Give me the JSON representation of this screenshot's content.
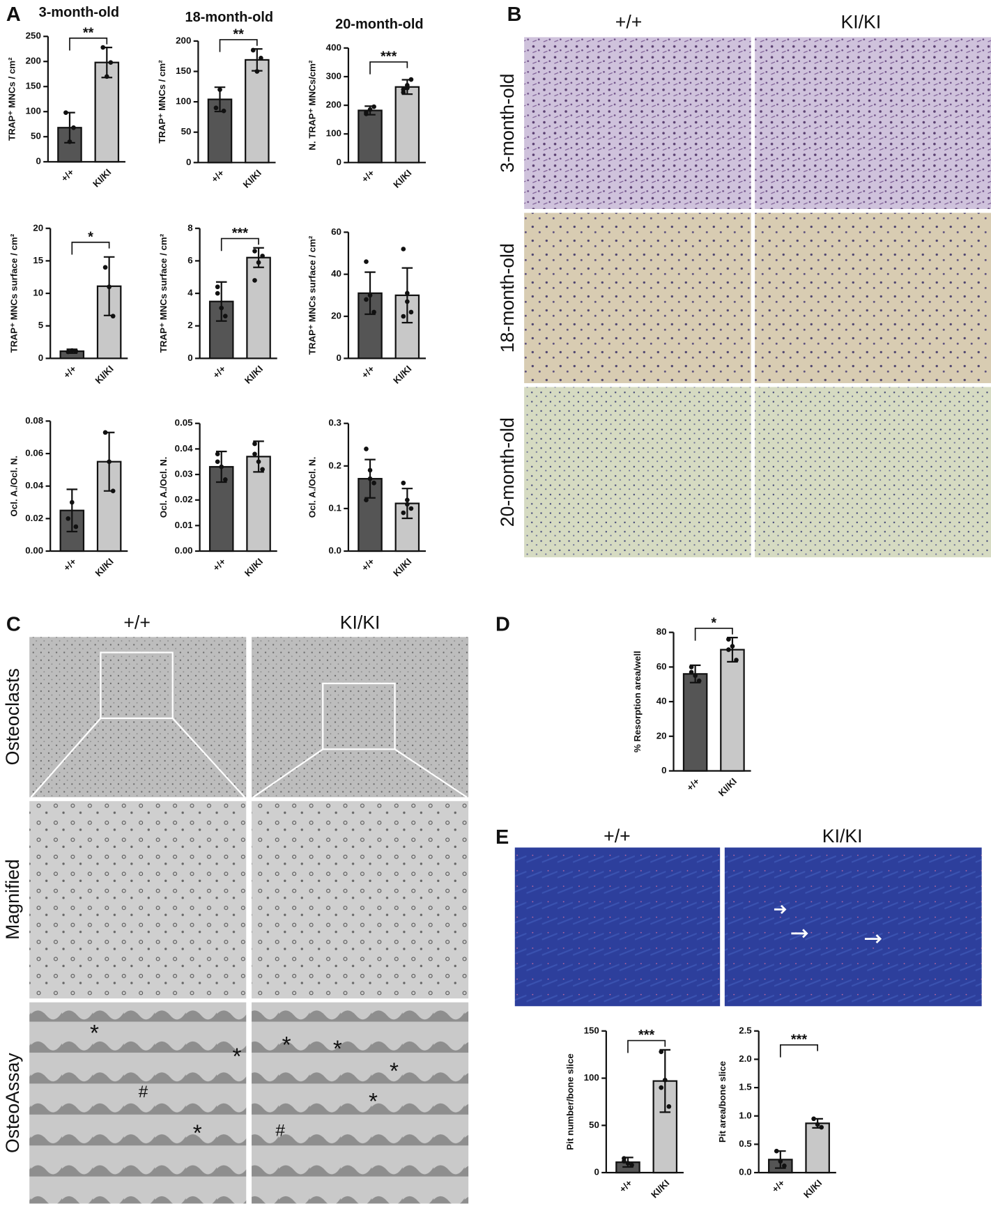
{
  "figure": {
    "panels": [
      "A",
      "B",
      "C",
      "D",
      "E"
    ],
    "B": {
      "columns": [
        "+/+",
        "KI/KI"
      ],
      "rows": [
        "3-month-old",
        "18-month-old",
        "20-month-old"
      ]
    },
    "C": {
      "columns": [
        "+/+",
        "KI/KI"
      ],
      "rows": [
        "Osteoclasts",
        "Magnified",
        "OsteoAssay"
      ],
      "marks": [
        "*",
        "#",
        "*",
        "*",
        "*",
        "*",
        "*",
        "*",
        "#"
      ]
    },
    "E": {
      "columns": [
        "+/+",
        "KI/KI"
      ]
    }
  },
  "chart_data": [
    {
      "type": "bar",
      "title": "3-month-old",
      "ylabel": "TRAP⁺ MNCs / cm²",
      "categories": [
        "+/+",
        "KI/KI"
      ],
      "colors": [
        "#555555",
        "#c8c8c8"
      ],
      "values": [
        68,
        198
      ],
      "errors": [
        30,
        30
      ],
      "points": [
        [
          98,
          40,
          68
        ],
        [
          228,
          170,
          198
        ]
      ],
      "significance": "**",
      "ylim": [
        0,
        250
      ],
      "yticks": [
        0,
        50,
        100,
        150,
        200,
        250
      ]
    },
    {
      "type": "bar",
      "title": "18-month-old",
      "ylabel": "TRAP⁺ MNCs / cm²",
      "categories": [
        "+/+",
        "KI/KI"
      ],
      "colors": [
        "#555555",
        "#c8c8c8"
      ],
      "values": [
        104,
        169
      ],
      "errors": [
        20,
        18
      ],
      "points": [
        [
          90,
          120,
          85
        ],
        [
          185,
          150,
          172
        ]
      ],
      "significance": "**",
      "ylim": [
        0,
        200
      ],
      "yticks": [
        0,
        50,
        100,
        150,
        200
      ]
    },
    {
      "type": "bar",
      "title": "20-month-old",
      "ylabel": "N. TRAP⁺ MNCs/cm²",
      "categories": [
        "+/+",
        "KI/KI"
      ],
      "colors": [
        "#555555",
        "#c8c8c8"
      ],
      "values": [
        182,
        264
      ],
      "errors": [
        15,
        25
      ],
      "points": [
        [
          170,
          185,
          195,
          175
        ],
        [
          245,
          270,
          290,
          255,
          260
        ]
      ],
      "significance": "***",
      "ylim": [
        0,
        400
      ],
      "yticks": [
        0,
        100,
        200,
        300,
        400
      ]
    },
    {
      "type": "bar",
      "ylabel": "TRAP⁺ MNCs surface / cm²",
      "categories": [
        "+/+",
        "KI/KI"
      ],
      "colors": [
        "#555555",
        "#c8c8c8"
      ],
      "values": [
        1.1,
        11.1
      ],
      "errors": [
        0.3,
        4.5
      ],
      "points": [
        [
          1,
          1.2,
          1.1
        ],
        [
          14,
          11,
          6.5
        ]
      ],
      "significance": "*",
      "ylim": [
        0,
        20
      ],
      "yticks": [
        0,
        5,
        10,
        15,
        20
      ]
    },
    {
      "type": "bar",
      "ylabel": "TRAP⁺ MNCs surface / cm²",
      "categories": [
        "+/+",
        "KI/KI"
      ],
      "colors": [
        "#555555",
        "#c8c8c8"
      ],
      "values": [
        3.5,
        6.2
      ],
      "errors": [
        1.2,
        0.6
      ],
      "points": [
        [
          4.4,
          3.1,
          2.6,
          4.0
        ],
        [
          6.6,
          5.9,
          6.3,
          4.8
        ]
      ],
      "significance": "***",
      "ylim": [
        0,
        8
      ],
      "yticks": [
        0,
        2,
        4,
        6,
        8
      ]
    },
    {
      "type": "bar",
      "ylabel": "TRAP⁺ MNCs surface / cm²",
      "categories": [
        "+/+",
        "KI/KI"
      ],
      "colors": [
        "#555555",
        "#c8c8c8"
      ],
      "values": [
        31,
        30
      ],
      "errors": [
        10,
        13
      ],
      "points": [
        [
          46,
          30,
          22,
          28
        ],
        [
          52,
          27,
          22,
          20,
          31
        ]
      ],
      "ylim": [
        0,
        60
      ],
      "yticks": [
        0,
        20,
        40,
        60
      ]
    },
    {
      "type": "bar",
      "ylabel": "Ocl. A./Ocl. N.",
      "categories": [
        "+/+",
        "KI/KI"
      ],
      "colors": [
        "#555555",
        "#c8c8c8"
      ],
      "values": [
        0.025,
        0.055
      ],
      "errors": [
        0.013,
        0.018
      ],
      "points": [
        [
          0.02,
          0.03,
          0.015
        ],
        [
          0.073,
          0.055,
          0.037
        ]
      ],
      "ylim": [
        0,
        0.08
      ],
      "yticks": [
        {
          "value": 0,
          "label": "0.00"
        },
        {
          "value": 0.02,
          "label": "0.02"
        },
        {
          "value": 0.04,
          "label": "0.04"
        },
        {
          "value": 0.06,
          "label": "0.06"
        },
        {
          "value": 0.08,
          "label": "0.08"
        }
      ]
    },
    {
      "type": "bar",
      "ylabel": "Ocl. A./Ocl. N.",
      "categories": [
        "+/+",
        "KI/KI"
      ],
      "colors": [
        "#555555",
        "#c8c8c8"
      ],
      "values": [
        0.033,
        0.037
      ],
      "errors": [
        0.006,
        0.006
      ],
      "points": [
        [
          0.038,
          0.033,
          0.028,
          0.035
        ],
        [
          0.042,
          0.035,
          0.032,
          0.038
        ]
      ],
      "ylim": [
        0,
        0.05
      ],
      "yticks": [
        {
          "value": 0,
          "label": "0.00"
        },
        {
          "value": 0.01,
          "label": "0.01"
        },
        {
          "value": 0.02,
          "label": "0.02"
        },
        {
          "value": 0.03,
          "label": "0.03"
        },
        {
          "value": 0.04,
          "label": "0.04"
        },
        {
          "value": 0.05,
          "label": "0.05"
        }
      ]
    },
    {
      "type": "bar",
      "ylabel": "Ocl. A./Ocl. N.",
      "categories": [
        "+/+",
        "KI/KI"
      ],
      "colors": [
        "#555555",
        "#c8c8c8"
      ],
      "values": [
        0.17,
        0.112
      ],
      "errors": [
        0.045,
        0.035
      ],
      "points": [
        [
          0.24,
          0.19,
          0.16,
          0.12,
          0.17
        ],
        [
          0.16,
          0.12,
          0.1,
          0.09,
          0.11
        ]
      ],
      "ylim": [
        0,
        0.3
      ],
      "yticks": [
        {
          "value": 0,
          "label": "0.0"
        },
        {
          "value": 0.1,
          "label": "0.1"
        },
        {
          "value": 0.2,
          "label": "0.2"
        },
        {
          "value": 0.3,
          "label": "0.3"
        }
      ]
    },
    {
      "type": "bar",
      "ylabel": "% Resorption area/well",
      "categories": [
        "+/+",
        "KI/KI"
      ],
      "colors": [
        "#555555",
        "#c8c8c8"
      ],
      "values": [
        56,
        70
      ],
      "errors": [
        5,
        7
      ],
      "points": [
        [
          60,
          55,
          52,
          57
        ],
        [
          76,
          72,
          64,
          70
        ]
      ],
      "significance": "*",
      "ylim": [
        0,
        80
      ],
      "yticks": [
        0,
        20,
        40,
        60,
        80
      ]
    },
    {
      "type": "bar",
      "ylabel": "Pit number/bone slice",
      "categories": [
        "+/+",
        "KI/KI"
      ],
      "colors": [
        "#555555",
        "#c8c8c8"
      ],
      "values": [
        11,
        97
      ],
      "errors": [
        5,
        33
      ],
      "points": [
        [
          15,
          10,
          8,
          12
        ],
        [
          128,
          98,
          70,
          90
        ]
      ],
      "significance": "***",
      "ylim": [
        0,
        150
      ],
      "yticks": [
        0,
        50,
        100,
        150
      ]
    },
    {
      "type": "bar",
      "ylabel": "Pit area/bone slice",
      "categories": [
        "+/+",
        "KI/KI"
      ],
      "colors": [
        "#555555",
        "#c8c8c8"
      ],
      "values": [
        0.23,
        0.87
      ],
      "errors": [
        0.15,
        0.08
      ],
      "points": [
        [
          0.38,
          0.2,
          0.12
        ],
        [
          0.95,
          0.85,
          0.8
        ]
      ],
      "significance": "***",
      "ylim": [
        0,
        2.5
      ],
      "yticks": [
        {
          "value": 0,
          "label": "0.0"
        },
        {
          "value": 0.5,
          "label": "0.5"
        },
        {
          "value": 1,
          "label": "1.0"
        },
        {
          "value": 1.5,
          "label": "1.5"
        },
        {
          "value": 2,
          "label": "2.0"
        },
        {
          "value": 2.5,
          "label": "2.5"
        }
      ]
    }
  ]
}
